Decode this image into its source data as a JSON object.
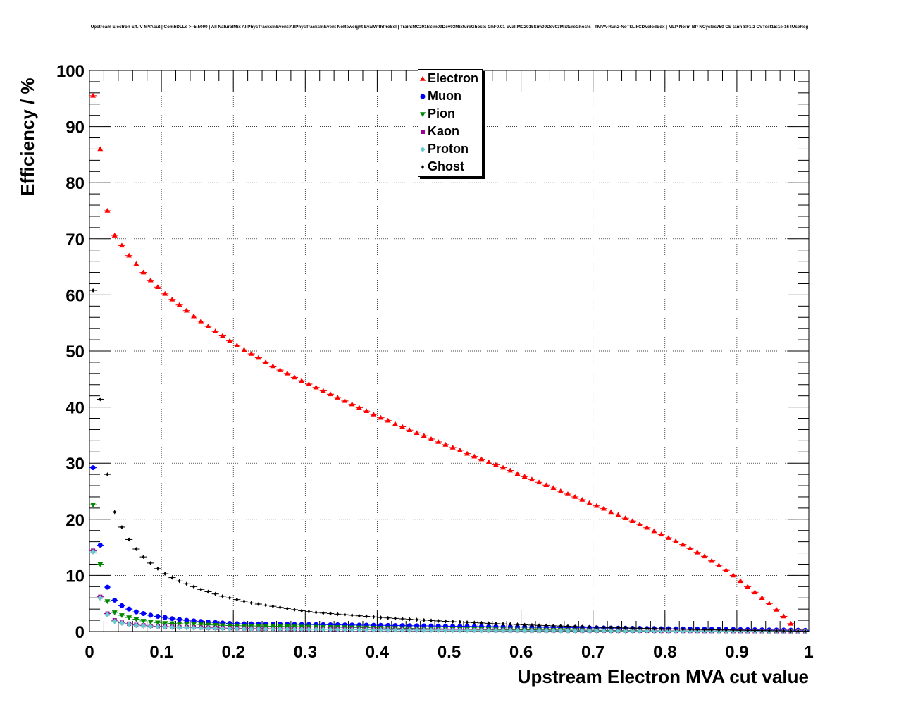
{
  "chart_data": {
    "type": "scatter",
    "title": "Upstream Electron Eff. V MVAcut | CombDLLe > -5.5000 | All NaturalMix AllPhysTracksInEvent:AllPhysTracksInEvent NoReweight EvalWithPreSel | Train:MC2015Sim09Dev03MixtureGhosts GhF0.01 Eval:MC2015Sim09Dev03MixtureGhosts | TMVA-Run2-NoTkLikCDVelodEdx | MLP Norm BP NCycles750 CE tanh SF1.2 CVTest15:1e-16 !UseReg",
    "xlabel": "Upstream Electron MVA cut value",
    "ylabel": "Efficiency / %",
    "xlim": [
      0,
      1
    ],
    "ylim": [
      0,
      100
    ],
    "grid": true,
    "legend_position": "top-center",
    "x_first": 0.005,
    "bin_width": 0.01,
    "xticks": [
      "0",
      "0.1",
      "0.2",
      "0.3",
      "0.4",
      "0.5",
      "0.6",
      "0.7",
      "0.8",
      "0.9",
      "1"
    ],
    "yticks": [
      "0",
      "10",
      "20",
      "30",
      "40",
      "50",
      "60",
      "70",
      "80",
      "90",
      "100"
    ],
    "series": [
      {
        "name": "Electron",
        "color": "#ff0000",
        "marker": "triangle-up",
        "values": [
          95.5,
          86,
          75,
          70.6,
          68.8,
          67,
          65.5,
          64,
          62.6,
          61.4,
          60.2,
          59.2,
          58.2,
          57.2,
          56.2,
          55.3,
          54.4,
          53.5,
          52.7,
          51.8,
          51.0,
          50.2,
          49.5,
          48.8,
          48.0,
          47.3,
          46.6,
          46.0,
          45.3,
          44.7,
          44.1,
          43.5,
          42.9,
          42.3,
          41.7,
          41.1,
          40.5,
          39.9,
          39.3,
          38.7,
          38.1,
          37.6,
          37.0,
          36.5,
          35.9,
          35.4,
          34.9,
          34.3,
          33.8,
          33.3,
          32.8,
          32.3,
          31.7,
          31.2,
          30.7,
          30.2,
          29.7,
          29.2,
          28.7,
          28.1,
          27.6,
          27.1,
          26.6,
          26.1,
          25.6,
          25.0,
          24.5,
          24.0,
          23.5,
          22.9,
          22.4,
          21.9,
          21.3,
          20.8,
          20.2,
          19.7,
          19.1,
          18.5,
          17.9,
          17.3,
          16.7,
          16.1,
          15.5,
          14.8,
          14.1,
          13.4,
          12.6,
          11.8,
          10.9,
          10.0,
          9.0,
          8.0,
          7.0,
          6.0,
          5.0,
          3.9,
          2.7,
          1.4,
          0.3,
          null
        ]
      },
      {
        "name": "Muon",
        "color": "#0000ff",
        "marker": "circle",
        "values": [
          29.2,
          15.4,
          7.9,
          5.6,
          4.6,
          4.0,
          3.5,
          3.2,
          2.9,
          2.7,
          2.5,
          2.3,
          2.15,
          2.0,
          1.9,
          1.8,
          1.7,
          1.6,
          1.52,
          1.45,
          1.4,
          1.38,
          1.37,
          1.35,
          1.34,
          1.32,
          1.31,
          1.29,
          1.28,
          1.26,
          1.25,
          1.23,
          1.22,
          1.2,
          1.19,
          1.17,
          1.16,
          1.14,
          1.13,
          1.11,
          1.1,
          1.08,
          1.07,
          1.05,
          1.04,
          1.02,
          1.01,
          0.99,
          0.98,
          0.96,
          0.95,
          0.93,
          0.92,
          0.9,
          0.89,
          0.87,
          0.86,
          0.84,
          0.83,
          0.81,
          0.8,
          0.78,
          0.77,
          0.75,
          0.74,
          0.72,
          0.71,
          0.69,
          0.68,
          0.66,
          0.65,
          0.63,
          0.62,
          0.6,
          0.59,
          0.57,
          0.56,
          0.54,
          0.53,
          0.51,
          0.5,
          0.48,
          0.47,
          0.45,
          0.44,
          0.42,
          0.41,
          0.39,
          0.38,
          0.36,
          0.35,
          0.33,
          0.32,
          0.3,
          0.29,
          0.27,
          0.26,
          0.24,
          0.23,
          0.21
        ]
      },
      {
        "name": "Pion",
        "color": "#008800",
        "marker": "triangle-down",
        "values": [
          22.6,
          12.0,
          5.4,
          3.4,
          2.9,
          2.5,
          2.2,
          1.9,
          1.7,
          1.6,
          1.5,
          1.45,
          1.4,
          1.35,
          1.3,
          1.25,
          1.2,
          1.15,
          1.1,
          1.07,
          1.04,
          1.02,
          1.0,
          0.98,
          0.96,
          0.94,
          0.92,
          0.9,
          0.88,
          0.86,
          0.84,
          0.82,
          0.8,
          0.78,
          0.76,
          0.74,
          0.72,
          0.7,
          0.68,
          0.66,
          0.64,
          0.62,
          0.6,
          0.58,
          0.56,
          0.54,
          0.52,
          0.5,
          0.48,
          0.46,
          0.45,
          0.44,
          0.42,
          0.41,
          0.4,
          0.38,
          0.37,
          0.36,
          0.34,
          0.33,
          0.32,
          0.31,
          0.3,
          0.29,
          0.28,
          0.27,
          0.26,
          0.25,
          0.24,
          0.23,
          0.22,
          0.21,
          0.2,
          0.19,
          0.18,
          0.17,
          0.16,
          0.15,
          0.14,
          0.13,
          0.12,
          0.12,
          0.11,
          0.11,
          0.1,
          0.1,
          0.09,
          0.09,
          0.08,
          0.08,
          0.07,
          0.07,
          0.06,
          0.06,
          0.05,
          0.05,
          0.04,
          0.04,
          0.03,
          0.03
        ]
      },
      {
        "name": "Kaon",
        "color": "#990099",
        "marker": "square",
        "values": [
          14.4,
          6.2,
          3.2,
          2.0,
          1.6,
          1.4,
          1.2,
          1.1,
          1.0,
          0.95,
          0.9,
          0.85,
          0.8,
          0.77,
          0.74,
          0.71,
          0.68,
          0.65,
          0.62,
          0.6,
          0.58,
          0.56,
          0.55,
          0.53,
          0.52,
          0.5,
          0.49,
          0.48,
          0.47,
          0.46,
          0.45,
          0.44,
          0.43,
          0.42,
          0.41,
          0.4,
          0.39,
          0.38,
          0.37,
          0.36,
          0.35,
          0.34,
          0.33,
          0.32,
          0.31,
          0.3,
          0.29,
          0.28,
          0.28,
          0.27,
          0.26,
          0.26,
          0.25,
          0.24,
          0.24,
          0.23,
          0.22,
          0.22,
          0.21,
          0.21,
          0.2,
          0.2,
          0.19,
          0.19,
          0.18,
          0.18,
          0.17,
          0.17,
          0.16,
          0.16,
          0.15,
          0.15,
          0.14,
          0.14,
          0.13,
          0.13,
          0.12,
          0.12,
          0.12,
          0.11,
          0.11,
          0.11,
          0.1,
          0.1,
          0.1,
          0.09,
          0.09,
          0.09,
          0.08,
          0.08,
          0.08,
          0.07,
          0.07,
          0.07,
          0.06,
          0.06,
          0.06,
          0.05,
          0.05,
          0.05
        ]
      },
      {
        "name": "Proton",
        "color": "#66cccc",
        "marker": "diamond",
        "values": [
          14.2,
          6.0,
          3.0,
          1.8,
          1.5,
          1.3,
          1.1,
          1.0,
          0.9,
          0.85,
          0.8,
          0.76,
          0.72,
          0.68,
          0.65,
          0.62,
          0.59,
          0.56,
          0.53,
          0.5,
          0.48,
          0.47,
          0.46,
          0.45,
          0.44,
          0.43,
          0.42,
          0.41,
          0.4,
          0.39,
          0.38,
          0.37,
          0.36,
          0.35,
          0.34,
          0.33,
          0.32,
          0.31,
          0.3,
          0.29,
          0.28,
          0.27,
          0.27,
          0.26,
          0.25,
          0.25,
          0.24,
          0.23,
          0.23,
          0.22,
          0.21,
          0.21,
          0.2,
          0.2,
          0.19,
          0.19,
          0.18,
          0.18,
          0.17,
          0.17,
          0.16,
          0.16,
          0.15,
          0.15,
          0.14,
          0.14,
          0.13,
          0.13,
          0.12,
          0.12,
          0.11,
          0.11,
          0.1,
          0.1,
          0.1,
          0.09,
          0.09,
          0.09,
          0.08,
          0.08,
          0.08,
          0.07,
          0.07,
          0.07,
          0.06,
          0.06,
          0.06,
          0.05,
          0.05,
          0.05,
          0.04,
          0.04,
          0.04,
          0.04,
          0.03,
          0.03,
          0.03,
          0.03,
          0.02,
          0.02
        ]
      },
      {
        "name": "Ghost",
        "color": "#000000",
        "marker": "small-diamond",
        "values": [
          60.8,
          41.4,
          28,
          21.3,
          18.6,
          16.4,
          14.7,
          13.3,
          12.2,
          11.2,
          10.3,
          9.6,
          9.0,
          8.5,
          8.0,
          7.5,
          7.1,
          6.7,
          6.3,
          6.0,
          5.7,
          5.4,
          5.1,
          4.9,
          4.7,
          4.5,
          4.3,
          4.1,
          3.9,
          3.7,
          3.55,
          3.4,
          3.3,
          3.2,
          3.1,
          3.0,
          2.9,
          2.8,
          2.7,
          2.6,
          2.5,
          2.42,
          2.34,
          2.26,
          2.18,
          2.1,
          2.03,
          1.96,
          1.89,
          1.82,
          1.76,
          1.7,
          1.64,
          1.58,
          1.52,
          1.46,
          1.4,
          1.35,
          1.3,
          1.25,
          1.2,
          1.15,
          1.1,
          1.06,
          1.02,
          0.98,
          0.94,
          0.9,
          0.86,
          0.82,
          0.78,
          0.74,
          0.71,
          0.68,
          0.65,
          0.62,
          0.59,
          0.56,
          0.53,
          0.5,
          0.47,
          0.44,
          0.41,
          0.38,
          0.35,
          0.33,
          0.31,
          0.29,
          0.27,
          0.25,
          0.23,
          0.21,
          0.19,
          0.17,
          0.15,
          0.13,
          0.11,
          0.09,
          0.07,
          0.05
        ]
      }
    ]
  }
}
